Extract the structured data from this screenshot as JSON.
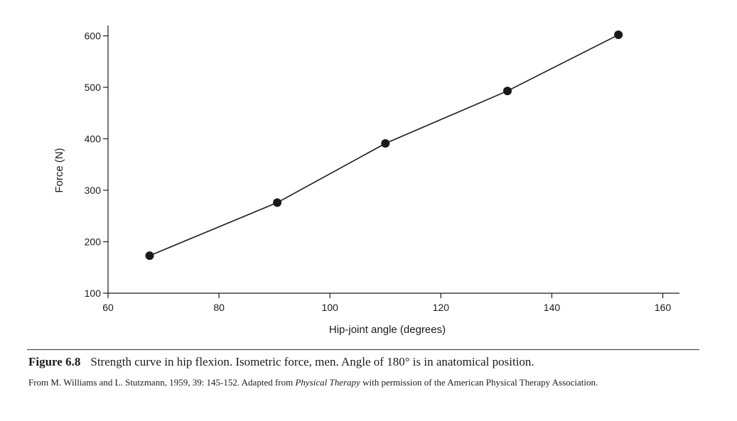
{
  "chart_data": {
    "type": "line",
    "x": [
      67.5,
      90.5,
      110,
      132,
      152
    ],
    "y": [
      173,
      276,
      391,
      493,
      602
    ],
    "xlabel": "Hip-joint angle (degrees)",
    "ylabel": "Force (N)",
    "xlim": [
      60,
      163
    ],
    "ylim": [
      100,
      620
    ],
    "xticks": [
      "60",
      "80",
      "100",
      "120",
      "140",
      "160"
    ],
    "yticks": [
      "100",
      "200",
      "300",
      "400",
      "500",
      "600"
    ],
    "grid": false,
    "markers": "filled-circle",
    "line_color": "#1a1a1a"
  },
  "caption": {
    "figure_number": "Figure 6.8",
    "text": "Strength curve in hip flexion. Isometric force, men. Angle of 180° is in anatomical position."
  },
  "source": {
    "before": "From M. Williams and L. Stutzmann, 1959, 39: 145-152. Adapted from ",
    "journal": "Physical Therapy",
    "after": " with permission of the American Physical Therapy Association."
  }
}
